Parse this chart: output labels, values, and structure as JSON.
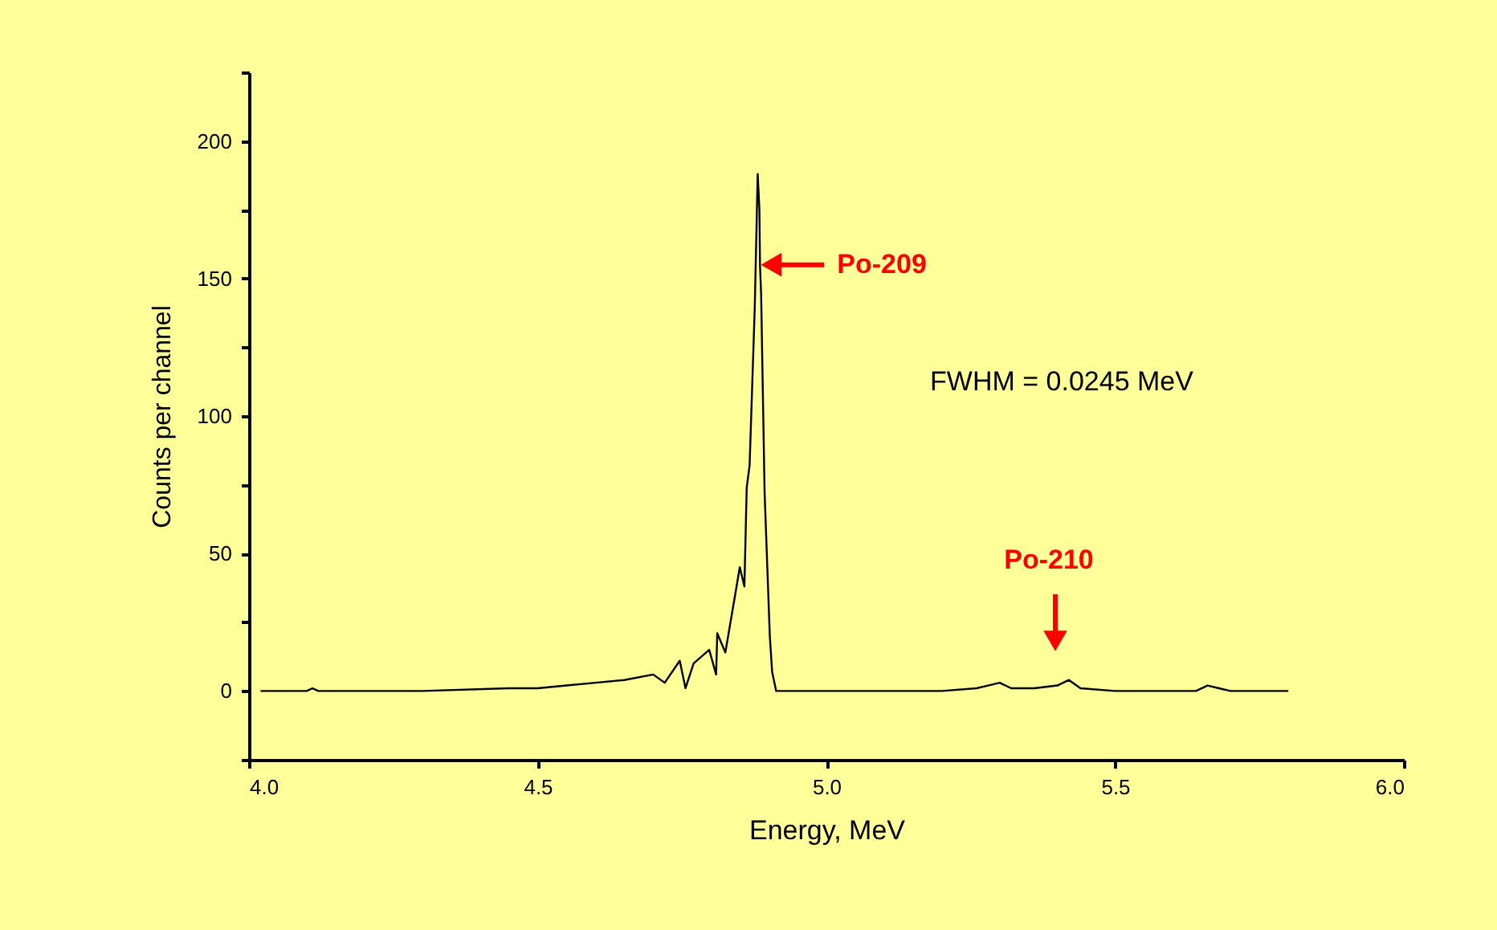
{
  "chart_data": {
    "type": "line",
    "xlabel": "Energy, MeV",
    "ylabel": "Counts per channel",
    "xlim": [
      4.0,
      6.0
    ],
    "xticks": [
      {
        "value": 4,
        "label": "4.0"
      },
      4.5,
      {
        "value": 5,
        "label": "5.0"
      },
      5.5,
      {
        "value": 6,
        "label": "6.0"
      }
    ],
    "ylim": [
      -25,
      225
    ],
    "yticks": [
      {
        "value": -25,
        "label": null
      },
      0,
      {
        "value": 25,
        "label": null
      },
      50,
      {
        "value": 75,
        "label": null
      },
      100,
      {
        "value": 125,
        "label": null
      },
      150,
      {
        "value": 175,
        "label": null
      },
      200,
      {
        "value": 225,
        "label": null
      }
    ],
    "grid": false,
    "marker": "none",
    "line_style": "solid",
    "series": [
      {
        "color": "#000000",
        "x": [
          4.02,
          4.1,
          4.11,
          4.12,
          4.2,
          4.3,
          4.45,
          4.5,
          4.55,
          4.6,
          4.65,
          4.7,
          4.72,
          4.746,
          4.756,
          4.77,
          4.797,
          4.809,
          4.811,
          4.825,
          4.842,
          4.85,
          4.858,
          4.862,
          4.867,
          4.876,
          4.881,
          4.884,
          4.885,
          4.887,
          4.893,
          4.902,
          4.906,
          4.913,
          5.0,
          5.2,
          5.26,
          5.28,
          5.3,
          5.32,
          5.36,
          5.4,
          5.42,
          5.44,
          5.5,
          5.64,
          5.66,
          5.68,
          5.7,
          5.8
        ],
        "values": [
          0,
          0,
          1,
          0,
          0,
          0,
          1,
          1,
          2,
          3,
          4,
          6,
          3,
          11,
          1,
          10,
          15,
          6,
          21,
          14,
          35,
          45,
          38,
          74,
          82,
          140,
          188,
          175,
          155,
          144,
          72,
          20,
          7,
          0,
          0,
          0,
          1,
          2,
          3,
          1,
          1,
          2,
          4,
          1,
          0,
          0,
          2,
          1,
          0,
          0
        ]
      }
    ],
    "annotations": [
      {
        "text": "Po-209",
        "x": 4.885,
        "y": 155
      },
      "FWHM = 0.0245 MeV",
      "Po-210"
    ]
  }
}
